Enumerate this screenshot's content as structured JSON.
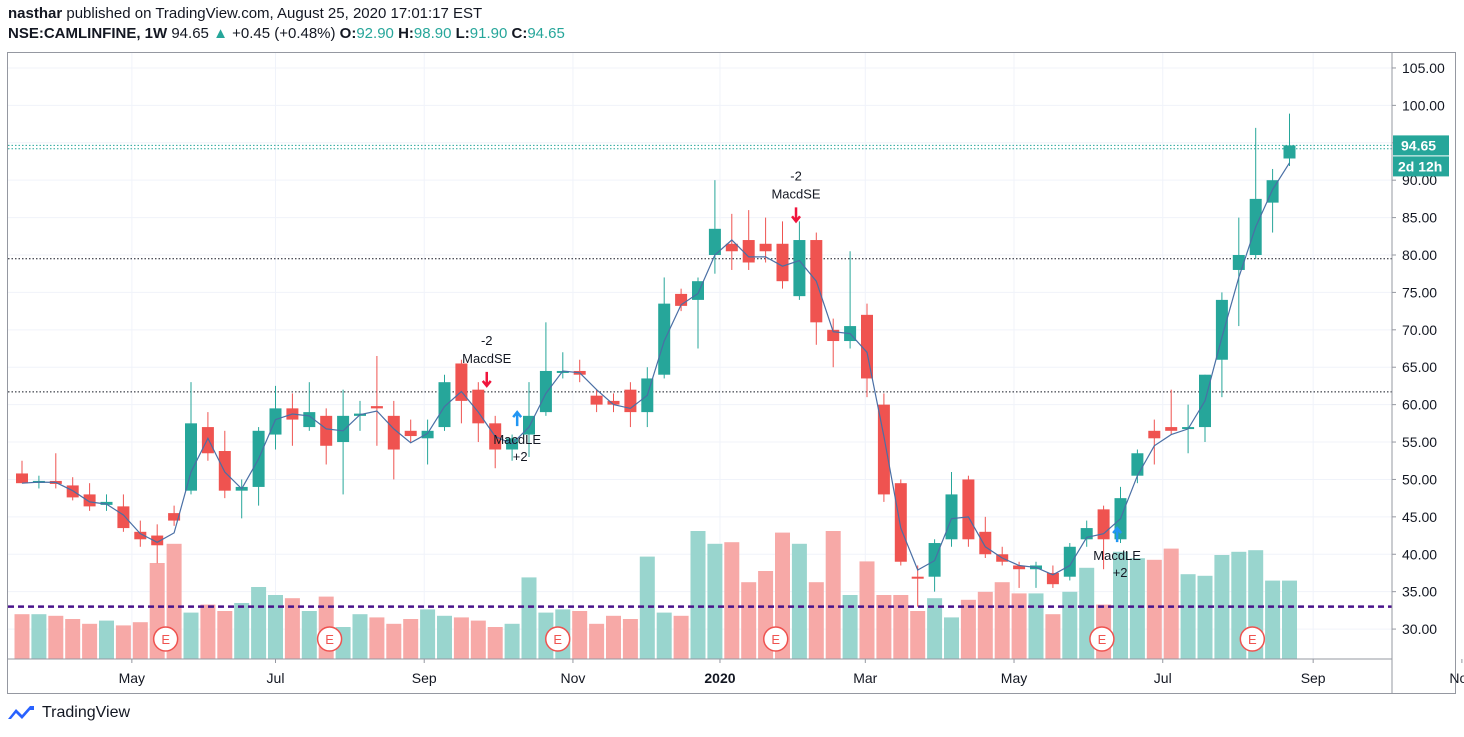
{
  "header": {
    "user": "nasthar",
    "published_text": "published on TradingView.com, August 25, 2020 17:01:17 EST",
    "symbol": "NSE:CAMLINFINE, 1W",
    "price": "94.65",
    "change_arrow": "▲",
    "change": "+0.45 (+0.48%)",
    "open_label": "O:",
    "open": "92.90",
    "high_label": "H:",
    "high": "98.90",
    "low_label": "L:",
    "low": "91.90",
    "close_label": "C:",
    "close": "94.65"
  },
  "footer": {
    "brand": "TradingView"
  },
  "colors": {
    "up": "#26a69a",
    "down": "#ef5350",
    "vol_up": "#99d5ce",
    "vol_down": "#f7a9a7",
    "ma_line": "#4a6fa5",
    "support_dash": "#4a148c",
    "buy_arrow": "#2196f3",
    "sell_arrow": "#f0143c"
  },
  "chart_data": {
    "type": "candlestick",
    "interval": "1W",
    "ylim": [
      26,
      107
    ],
    "y_ticks": [
      30,
      35,
      40,
      45,
      50,
      55,
      60,
      65,
      70,
      75,
      80,
      85,
      90,
      95,
      100,
      105
    ],
    "x_tick_labels": [
      "May",
      "Jul",
      "Sep",
      "Nov",
      "2020",
      "Mar",
      "May",
      "Jul",
      "Sep",
      "Nov"
    ],
    "x_tick_positions_bar_index": [
      6.5,
      15,
      23.8,
      32.6,
      41.3,
      49.9,
      58.7,
      67.5,
      76.4,
      85.2
    ],
    "last_price_label": "94.65",
    "countdown_label": "2d 12h",
    "horizontal_lines": [
      {
        "price": 94.65,
        "style": "dotted"
      },
      {
        "price": 94.2,
        "style": "dotted"
      },
      {
        "price": 79.5,
        "style": "dotted"
      },
      {
        "price": 61.7,
        "style": "dotted"
      },
      {
        "price": 33.0,
        "style": "dashed",
        "color": "#4a148c"
      }
    ],
    "candles": [
      {
        "o": 50.8,
        "h": 52.5,
        "l": 49.5,
        "c": 49.5
      },
      {
        "o": 49.6,
        "h": 50.5,
        "l": 48.8,
        "c": 49.8
      },
      {
        "o": 49.8,
        "h": 53.5,
        "l": 48.8,
        "c": 49.4
      },
      {
        "o": 49.2,
        "h": 50.3,
        "l": 47.2,
        "c": 47.6
      },
      {
        "o": 48.0,
        "h": 49.5,
        "l": 45.8,
        "c": 46.4
      },
      {
        "o": 46.6,
        "h": 48.0,
        "l": 45.8,
        "c": 47.0
      },
      {
        "o": 46.4,
        "h": 48.0,
        "l": 43.0,
        "c": 43.5
      },
      {
        "o": 43.0,
        "h": 44.5,
        "l": 41.0,
        "c": 42.0
      },
      {
        "o": 42.5,
        "h": 44.0,
        "l": 38.8,
        "c": 41.2
      },
      {
        "o": 45.5,
        "h": 46.5,
        "l": 43.8,
        "c": 44.5
      },
      {
        "o": 48.5,
        "h": 63.0,
        "l": 48.0,
        "c": 57.5
      },
      {
        "o": 57.0,
        "h": 59.0,
        "l": 52.5,
        "c": 53.5
      },
      {
        "o": 53.8,
        "h": 56.5,
        "l": 47.5,
        "c": 48.5
      },
      {
        "o": 48.5,
        "h": 50.0,
        "l": 44.8,
        "c": 49.0
      },
      {
        "o": 49.0,
        "h": 57.0,
        "l": 46.5,
        "c": 56.5
      },
      {
        "o": 56.0,
        "h": 62.5,
        "l": 54.0,
        "c": 59.5
      },
      {
        "o": 59.5,
        "h": 61.5,
        "l": 54.5,
        "c": 58.0
      },
      {
        "o": 57.0,
        "h": 63.0,
        "l": 56.5,
        "c": 59.0
      },
      {
        "o": 58.5,
        "h": 59.5,
        "l": 52.0,
        "c": 54.5
      },
      {
        "o": 55.0,
        "h": 62.0,
        "l": 48.0,
        "c": 58.5
      },
      {
        "o": 58.5,
        "h": 60.5,
        "l": 56.5,
        "c": 58.8
      },
      {
        "o": 59.8,
        "h": 66.5,
        "l": 54.5,
        "c": 59.5
      },
      {
        "o": 58.5,
        "h": 60.5,
        "l": 50.0,
        "c": 54.0
      },
      {
        "o": 56.5,
        "h": 58.0,
        "l": 55.0,
        "c": 55.8
      },
      {
        "o": 55.5,
        "h": 58.0,
        "l": 52.0,
        "c": 56.5
      },
      {
        "o": 57.0,
        "h": 64.0,
        "l": 56.5,
        "c": 63.0
      },
      {
        "o": 65.5,
        "h": 66.0,
        "l": 57.5,
        "c": 60.5
      },
      {
        "o": 62.0,
        "h": 63.0,
        "l": 55.0,
        "c": 57.5
      },
      {
        "o": 57.5,
        "h": 58.5,
        "l": 51.5,
        "c": 54.0
      },
      {
        "o": 54.0,
        "h": 56.0,
        "l": 52.5,
        "c": 55.5
      },
      {
        "o": 56.0,
        "h": 63.0,
        "l": 53.0,
        "c": 58.5
      },
      {
        "o": 59.0,
        "h": 71.0,
        "l": 58.5,
        "c": 64.5
      },
      {
        "o": 64.5,
        "h": 67.0,
        "l": 63.5,
        "c": 64.5
      },
      {
        "o": 64.5,
        "h": 66.0,
        "l": 63.0,
        "c": 64.0
      },
      {
        "o": 61.2,
        "h": 62.0,
        "l": 59.0,
        "c": 60.0
      },
      {
        "o": 60.5,
        "h": 61.5,
        "l": 59.0,
        "c": 60.0
      },
      {
        "o": 62.0,
        "h": 63.0,
        "l": 57.0,
        "c": 59.0
      },
      {
        "o": 59.0,
        "h": 65.0,
        "l": 57.0,
        "c": 63.5
      },
      {
        "o": 64.0,
        "h": 77.0,
        "l": 63.5,
        "c": 73.5
      },
      {
        "o": 74.8,
        "h": 75.5,
        "l": 72.5,
        "c": 73.2
      },
      {
        "o": 74.0,
        "h": 77.0,
        "l": 67.5,
        "c": 76.5
      },
      {
        "o": 80.0,
        "h": 90.0,
        "l": 77.5,
        "c": 83.5
      },
      {
        "o": 81.5,
        "h": 85.5,
        "l": 78.0,
        "c": 80.5
      },
      {
        "o": 82.0,
        "h": 86.0,
        "l": 78.0,
        "c": 79.0
      },
      {
        "o": 81.5,
        "h": 85.0,
        "l": 79.0,
        "c": 80.5
      },
      {
        "o": 81.5,
        "h": 84.5,
        "l": 75.5,
        "c": 76.5
      },
      {
        "o": 74.5,
        "h": 84.5,
        "l": 74.0,
        "c": 82.0
      },
      {
        "o": 82.0,
        "h": 83.0,
        "l": 68.0,
        "c": 71.0
      },
      {
        "o": 70.0,
        "h": 71.5,
        "l": 65.0,
        "c": 68.5
      },
      {
        "o": 68.5,
        "h": 80.5,
        "l": 67.5,
        "c": 70.5
      },
      {
        "o": 72.0,
        "h": 73.5,
        "l": 61.0,
        "c": 63.5
      },
      {
        "o": 60.0,
        "h": 61.5,
        "l": 47.0,
        "c": 48.0
      },
      {
        "o": 49.5,
        "h": 50.0,
        "l": 38.5,
        "c": 39.0
      },
      {
        "o": 37.0,
        "h": 38.5,
        "l": 33.0,
        "c": 36.8
      },
      {
        "o": 37.0,
        "h": 42.0,
        "l": 35.0,
        "c": 41.5
      },
      {
        "o": 42.0,
        "h": 51.0,
        "l": 41.0,
        "c": 48.0
      },
      {
        "o": 50.0,
        "h": 50.5,
        "l": 41.0,
        "c": 42.0
      },
      {
        "o": 43.0,
        "h": 45.0,
        "l": 39.5,
        "c": 40.0
      },
      {
        "o": 40.0,
        "h": 41.0,
        "l": 38.5,
        "c": 39.0
      },
      {
        "o": 38.5,
        "h": 39.0,
        "l": 35.5,
        "c": 38.0
      },
      {
        "o": 38.0,
        "h": 39.0,
        "l": 35.5,
        "c": 38.5
      },
      {
        "o": 37.5,
        "h": 38.5,
        "l": 35.5,
        "c": 36.0
      },
      {
        "o": 37.0,
        "h": 41.5,
        "l": 36.5,
        "c": 41.0
      },
      {
        "o": 42.0,
        "h": 44.5,
        "l": 41.0,
        "c": 43.5
      },
      {
        "o": 46.0,
        "h": 46.5,
        "l": 38.0,
        "c": 42.0
      },
      {
        "o": 42.0,
        "h": 49.0,
        "l": 41.5,
        "c": 47.5
      },
      {
        "o": 50.5,
        "h": 54.0,
        "l": 49.5,
        "c": 53.5
      },
      {
        "o": 56.5,
        "h": 58.0,
        "l": 52.0,
        "c": 55.5
      },
      {
        "o": 57.0,
        "h": 62.0,
        "l": 56.0,
        "c": 56.5
      },
      {
        "o": 57.0,
        "h": 60.0,
        "l": 53.5,
        "c": 57.0
      },
      {
        "o": 57.0,
        "h": 64.0,
        "l": 55.0,
        "c": 64.0
      },
      {
        "o": 66.0,
        "h": 75.0,
        "l": 61.0,
        "c": 74.0
      },
      {
        "o": 78.0,
        "h": 85.0,
        "l": 70.5,
        "c": 80.0
      },
      {
        "o": 80.0,
        "h": 97.0,
        "l": 79.5,
        "c": 87.5
      },
      {
        "o": 87.0,
        "h": 91.5,
        "l": 83.0,
        "c": 90.0
      },
      {
        "o": 92.9,
        "h": 98.9,
        "l": 91.9,
        "c": 94.65
      }
    ],
    "volume_relative": [
      0.28,
      0.28,
      0.27,
      0.25,
      0.22,
      0.24,
      0.21,
      0.23,
      0.6,
      0.72,
      0.29,
      0.34,
      0.3,
      0.35,
      0.45,
      0.4,
      0.38,
      0.3,
      0.39,
      0.2,
      0.28,
      0.26,
      0.22,
      0.25,
      0.31,
      0.27,
      0.26,
      0.24,
      0.2,
      0.22,
      0.51,
      0.29,
      0.31,
      0.3,
      0.22,
      0.27,
      0.25,
      0.64,
      0.29,
      0.27,
      0.8,
      0.72,
      0.73,
      0.48,
      0.55,
      0.79,
      0.72,
      0.48,
      0.8,
      0.4,
      0.61,
      0.4,
      0.4,
      0.3,
      0.38,
      0.26,
      0.37,
      0.42,
      0.48,
      0.41,
      0.41,
      0.28,
      0.42,
      0.57,
      0.34,
      0.67,
      0.63,
      0.62,
      0.69,
      0.53,
      0.52,
      0.65,
      0.67,
      0.68,
      0.49,
      0.49
    ],
    "series_ma": {
      "name": "",
      "values_follow_close": true
    },
    "signals": [
      {
        "bar": 27.5,
        "type": "sell",
        "price": 62.5,
        "label": "MacdSE",
        "qty": "-2"
      },
      {
        "bar": 29.3,
        "type": "buy",
        "price": 59.0,
        "label": "MacdLE",
        "qty": "+2"
      },
      {
        "bar": 45.8,
        "type": "sell",
        "price": 84.5,
        "label": "MacdSE",
        "qty": "-2"
      },
      {
        "bar": 64.8,
        "type": "buy",
        "price": 43.5,
        "label": "MacdLE",
        "qty": "+2"
      }
    ],
    "earnings_markers": [
      {
        "bar": 8.5,
        "label": "E"
      },
      {
        "bar": 18.2,
        "label": "E"
      },
      {
        "bar": 31.7,
        "label": "E"
      },
      {
        "bar": 44.6,
        "label": "E"
      },
      {
        "bar": 63.9,
        "label": "E"
      },
      {
        "bar": 72.8,
        "label": "E"
      }
    ]
  }
}
